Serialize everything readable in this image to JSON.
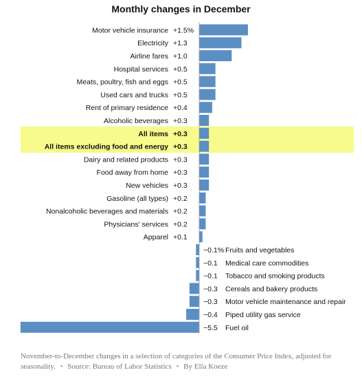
{
  "chart_data": {
    "type": "bar",
    "orientation": "horizontal",
    "title": "Monthly changes in December",
    "bar_color": "#5b8fc3",
    "highlight_color": "#f6fb8b",
    "text_color": "#121212",
    "categories": [
      "Motor vehicle insurance",
      "Electricity",
      "Airline fares",
      "Hospital services",
      "Meats, poultry, fish and eggs",
      "Used cars and trucks",
      "Rent of primary residence",
      "Alcoholic beverages",
      "All items",
      "All items excluding food and energy",
      "Dairy and related products",
      "Food away from home",
      "New vehicles",
      "Gasoline (all types)",
      "Nonalcoholic beverages and materials",
      "Physicians' services",
      "Apparel",
      "Fruits and vegetables",
      "Medical care commodities",
      "Tobacco and smoking products",
      "Cereals and bakery products",
      "Motor vehicle maintenance and repair",
      "Piped utility gas service",
      "Fuel oil"
    ],
    "values": [
      1.5,
      1.3,
      1.0,
      0.5,
      0.5,
      0.5,
      0.4,
      0.3,
      0.3,
      0.3,
      0.3,
      0.3,
      0.3,
      0.2,
      0.2,
      0.2,
      0.1,
      -0.1,
      -0.1,
      -0.1,
      -0.3,
      -0.3,
      -0.4,
      -5.5
    ],
    "value_labels": [
      "+1.5%",
      "+1.3",
      "+1.0",
      "+0.5",
      "+0.5",
      "+0.5",
      "+0.4",
      "+0.3",
      "+0.3",
      "+0.3",
      "+0.3",
      "+0.3",
      "+0.3",
      "+0.2",
      "+0.2",
      "+0.2",
      "+0.1",
      "−0.1%",
      "−0.1",
      "−0.1",
      "−0.3",
      "−0.3",
      "−0.4",
      "−5.5"
    ],
    "highlighted": [
      "All items",
      "All items excluding food and energy"
    ]
  },
  "caption": {
    "text": "November-to-December changes in a selection of categories of the Consumer Price Index, adjusted for seasonality.",
    "source": "Source: Bureau of Labor Statistics",
    "byline": "By Ella Koeze"
  }
}
